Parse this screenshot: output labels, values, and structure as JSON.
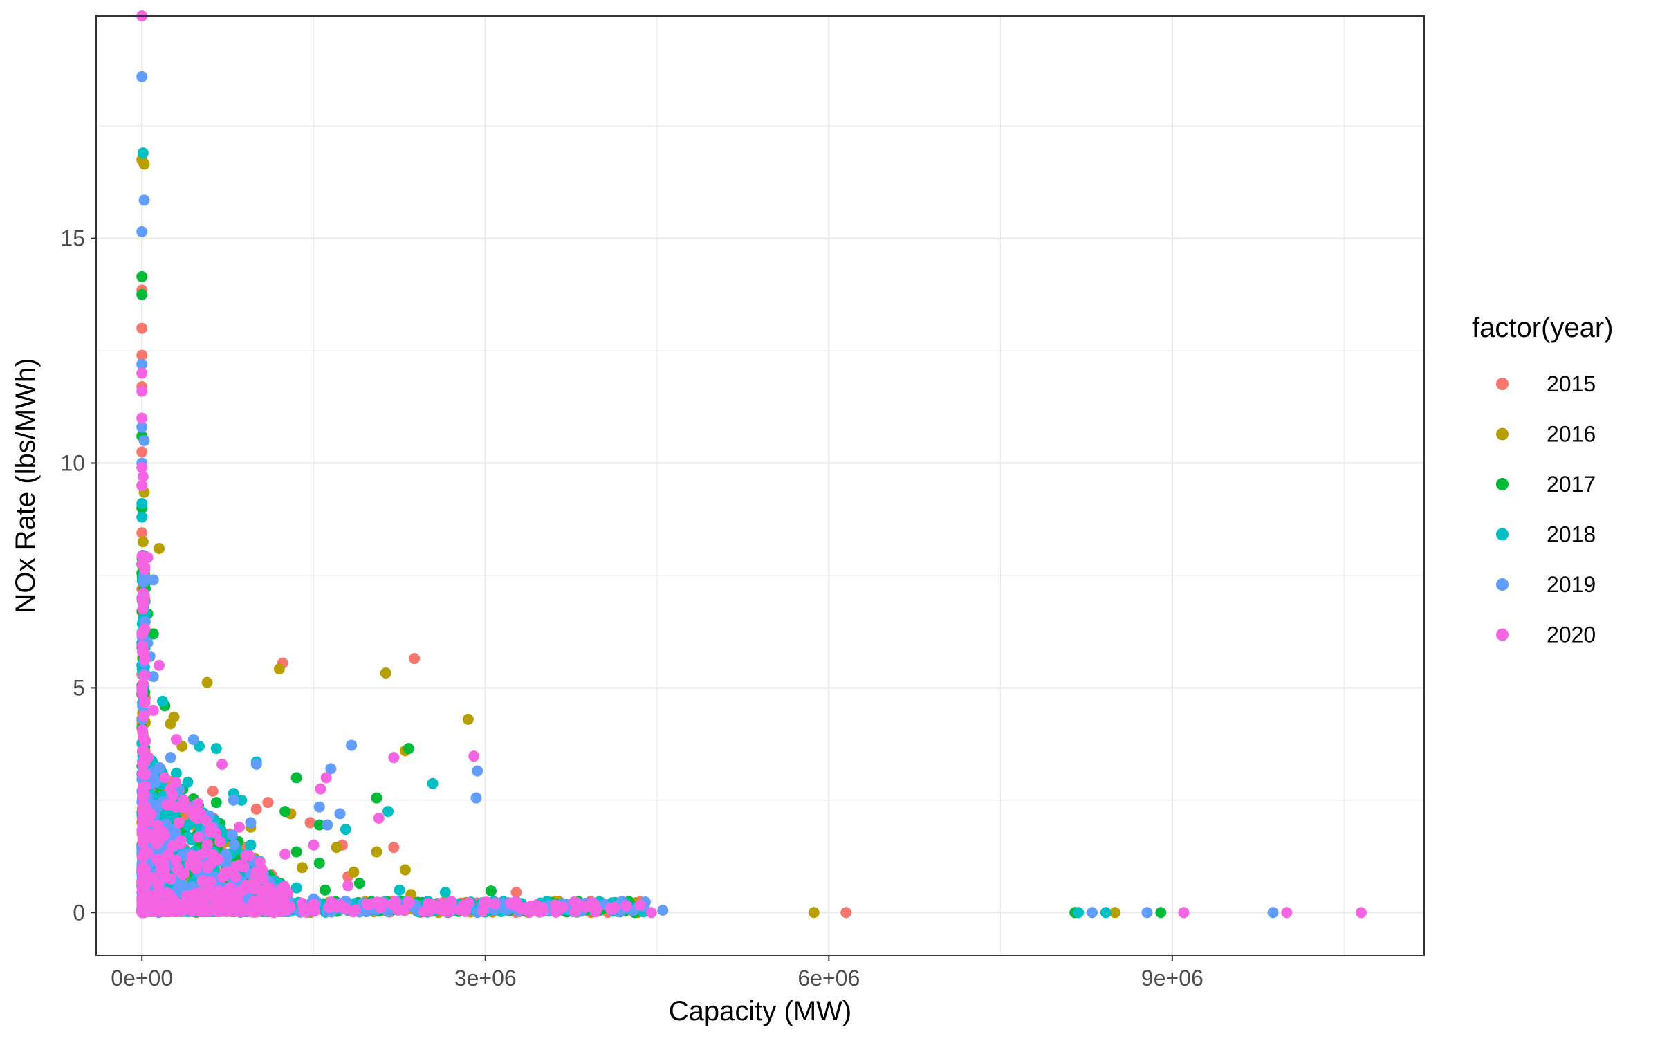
{
  "chart_data": {
    "type": "scatter",
    "xlabel": "Capacity (MW)",
    "ylabel": "NOx Rate (lbs/MWh)",
    "xlim": [
      -400000,
      11200000
    ],
    "ylim": [
      -0.95,
      19.95
    ],
    "x_ticks": [
      {
        "value": 0,
        "label": "0e+00"
      },
      {
        "value": 3000000,
        "label": "3e+06"
      },
      {
        "value": 6000000,
        "label": "6e+06"
      },
      {
        "value": 9000000,
        "label": "9e+06"
      }
    ],
    "y_ticks": [
      {
        "value": 0,
        "label": "0"
      },
      {
        "value": 5,
        "label": "5"
      },
      {
        "value": 10,
        "label": "10"
      },
      {
        "value": 15,
        "label": "15"
      }
    ],
    "x_minor": [
      1500000,
      4500000,
      7500000,
      10500000
    ],
    "y_minor": [
      2.5,
      7.5,
      12.5,
      17.5
    ],
    "grid": true,
    "legend": {
      "title": "factor(year)",
      "placement": "right"
    },
    "series": [
      {
        "name": "2015",
        "color": "#F8766D",
        "points": [
          [
            0,
            13.85
          ],
          [
            0,
            13.0
          ],
          [
            0,
            12.4
          ],
          [
            0,
            11.7
          ],
          [
            0,
            10.25
          ],
          [
            0,
            9.5
          ],
          [
            0,
            8.45
          ],
          [
            0,
            7.2
          ],
          [
            10000,
            6.1
          ],
          [
            0,
            5.3
          ],
          [
            0,
            4.1
          ],
          [
            20000,
            3.4
          ],
          [
            60000,
            2.8
          ],
          [
            100000,
            2.1
          ],
          [
            0,
            1.5
          ],
          [
            0,
            0.9
          ],
          [
            0,
            0.3
          ],
          [
            1230000,
            5.55
          ],
          [
            2380000,
            5.65
          ],
          [
            620000,
            2.7
          ],
          [
            1000000,
            2.3
          ],
          [
            1100000,
            2.45
          ],
          [
            1470000,
            2.0
          ],
          [
            1750000,
            1.5
          ],
          [
            2200000,
            1.45
          ],
          [
            1800000,
            0.8
          ],
          [
            3270000,
            0.45
          ],
          [
            2500000,
            0.15
          ],
          [
            6150000,
            0.0
          ],
          [
            900000,
            0.6
          ],
          [
            1500000,
            0.3
          ],
          [
            400000,
            1.2
          ],
          [
            250000,
            1.8
          ],
          [
            3000000,
            0.05
          ],
          [
            3600000,
            0.1
          ]
        ]
      },
      {
        "name": "2016",
        "color": "#B79F00",
        "points": [
          [
            20000,
            16.65
          ],
          [
            0,
            16.75
          ],
          [
            20000,
            9.35
          ],
          [
            10000,
            8.25
          ],
          [
            150000,
            8.1
          ],
          [
            0,
            6.7
          ],
          [
            0,
            5.9
          ],
          [
            0,
            4.9
          ],
          [
            570000,
            5.12
          ],
          [
            1200000,
            5.42
          ],
          [
            2130000,
            5.33
          ],
          [
            280000,
            4.35
          ],
          [
            250000,
            4.2
          ],
          [
            2850000,
            4.3
          ],
          [
            350000,
            3.7
          ],
          [
            2300000,
            3.6
          ],
          [
            1300000,
            2.2
          ],
          [
            950000,
            1.9
          ],
          [
            1700000,
            1.45
          ],
          [
            2050000,
            1.35
          ],
          [
            2300000,
            0.95
          ],
          [
            1850000,
            0.9
          ],
          [
            2350000,
            0.4
          ],
          [
            5870000,
            0.0
          ],
          [
            8500000,
            0.0
          ],
          [
            1400000,
            1.0
          ],
          [
            600000,
            1.6
          ],
          [
            800000,
            1.1
          ],
          [
            3100000,
            0.1
          ],
          [
            3800000,
            0.05
          ],
          [
            100000,
            2.5
          ],
          [
            0,
            2.0
          ]
        ]
      },
      {
        "name": "2017",
        "color": "#00BA38",
        "points": [
          [
            0,
            14.15
          ],
          [
            0,
            13.75
          ],
          [
            0,
            10.6
          ],
          [
            0,
            9.0
          ],
          [
            0,
            7.75
          ],
          [
            0,
            7.55
          ],
          [
            50000,
            6.65
          ],
          [
            100000,
            6.2
          ],
          [
            0,
            5.05
          ],
          [
            0,
            4.85
          ],
          [
            200000,
            4.6
          ],
          [
            1350000,
            3.0
          ],
          [
            2330000,
            3.65
          ],
          [
            2050000,
            2.55
          ],
          [
            650000,
            2.45
          ],
          [
            1250000,
            2.25
          ],
          [
            1550000,
            1.95
          ],
          [
            1350000,
            1.35
          ],
          [
            1550000,
            1.1
          ],
          [
            1900000,
            0.65
          ],
          [
            1600000,
            0.5
          ],
          [
            3050000,
            0.48
          ],
          [
            8150000,
            0.0
          ],
          [
            8900000,
            0.0
          ],
          [
            500000,
            1.5
          ],
          [
            300000,
            2.0
          ],
          [
            800000,
            0.9
          ],
          [
            1100000,
            0.7
          ],
          [
            2700000,
            0.1
          ],
          [
            4000000,
            0.05
          ]
        ]
      },
      {
        "name": "2018",
        "color": "#00BFC4",
        "points": [
          [
            10000,
            16.9
          ],
          [
            0,
            8.8
          ],
          [
            0,
            9.1
          ],
          [
            0,
            6.0
          ],
          [
            0,
            5.5
          ],
          [
            180000,
            4.7
          ],
          [
            1000000,
            3.35
          ],
          [
            500000,
            3.7
          ],
          [
            650000,
            3.65
          ],
          [
            800000,
            2.65
          ],
          [
            870000,
            2.5
          ],
          [
            2540000,
            2.87
          ],
          [
            2150000,
            2.25
          ],
          [
            1780000,
            1.85
          ],
          [
            650000,
            1.8
          ],
          [
            950000,
            1.5
          ],
          [
            1350000,
            0.55
          ],
          [
            2250000,
            0.5
          ],
          [
            2650000,
            0.45
          ],
          [
            8180000,
            0.0
          ],
          [
            8420000,
            0.0
          ],
          [
            4300000,
            0.1
          ],
          [
            400000,
            2.9
          ],
          [
            300000,
            3.1
          ],
          [
            700000,
            1.2
          ],
          [
            1050000,
            0.8
          ]
        ]
      },
      {
        "name": "2019",
        "color": "#619CFF",
        "points": [
          [
            0,
            18.6
          ],
          [
            20000,
            15.85
          ],
          [
            0,
            15.15
          ],
          [
            0,
            12.2
          ],
          [
            0,
            10.8
          ],
          [
            20000,
            10.5
          ],
          [
            0,
            10.0
          ],
          [
            100000,
            7.4
          ],
          [
            0,
            7.0
          ],
          [
            50000,
            6.0
          ],
          [
            70000,
            5.7
          ],
          [
            100000,
            5.25
          ],
          [
            450000,
            3.85
          ],
          [
            250000,
            3.45
          ],
          [
            1000000,
            3.3
          ],
          [
            1650000,
            3.2
          ],
          [
            1830000,
            3.72
          ],
          [
            2930000,
            3.15
          ],
          [
            2920000,
            2.55
          ],
          [
            1550000,
            2.35
          ],
          [
            1730000,
            2.2
          ],
          [
            1620000,
            1.95
          ],
          [
            800000,
            2.5
          ],
          [
            950000,
            2.0
          ],
          [
            1500000,
            0.3
          ],
          [
            4550000,
            0.05
          ],
          [
            8300000,
            0.0
          ],
          [
            8780000,
            0.0
          ],
          [
            9880000,
            0.0
          ],
          [
            300000,
            1.5
          ],
          [
            600000,
            1.2
          ],
          [
            2000000,
            0.2
          ],
          [
            3500000,
            0.1
          ],
          [
            4200000,
            0.08
          ]
        ]
      },
      {
        "name": "2020",
        "color": "#F564E3",
        "points": [
          [
            0,
            19.95
          ],
          [
            0,
            12.0
          ],
          [
            0,
            11.6
          ],
          [
            0,
            11.0
          ],
          [
            10000,
            9.7
          ],
          [
            0,
            9.9
          ],
          [
            0,
            9.5
          ],
          [
            50000,
            7.9
          ],
          [
            0,
            6.2
          ],
          [
            150000,
            5.5
          ],
          [
            0,
            5.0
          ],
          [
            300000,
            3.85
          ],
          [
            700000,
            3.3
          ],
          [
            850000,
            1.9
          ],
          [
            1250000,
            1.3
          ],
          [
            1560000,
            2.75
          ],
          [
            1610000,
            3.0
          ],
          [
            2200000,
            3.45
          ],
          [
            2070000,
            2.1
          ],
          [
            2900000,
            3.48
          ],
          [
            1500000,
            1.5
          ],
          [
            1800000,
            0.6
          ],
          [
            4450000,
            0.0
          ],
          [
            9100000,
            0.0
          ],
          [
            10000000,
            0.0
          ],
          [
            10650000,
            0.0
          ],
          [
            500000,
            2.2
          ],
          [
            200000,
            3.0
          ],
          [
            1000000,
            0.9
          ],
          [
            2500000,
            0.2
          ],
          [
            3500000,
            0.1
          ],
          [
            100000,
            4.5
          ]
        ]
      }
    ],
    "dense_cluster_note": ""
  }
}
